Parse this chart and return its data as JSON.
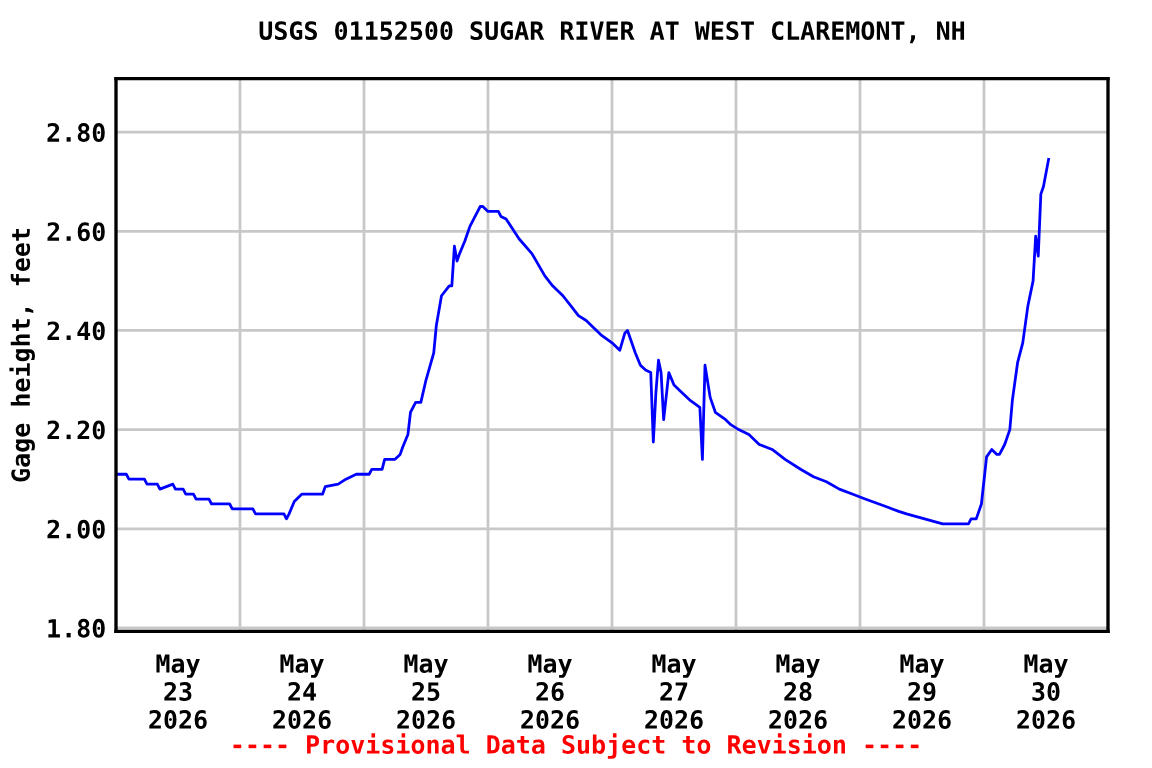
{
  "chart_data": {
    "type": "line",
    "title": "USGS 01152500 SUGAR RIVER AT WEST CLAREMONT, NH",
    "ylabel": "Gage height, feet",
    "annotations": [
      "---- Provisional Data Subject to Revision ----"
    ],
    "series": [
      {
        "color": "#0000ff",
        "x": [
          "2026-05-23T00:00",
          "2026-05-23T02:00",
          "2026-05-23T02:30",
          "2026-05-23T05:30",
          "2026-05-23T06:00",
          "2026-05-23T08:00",
          "2026-05-23T08:30",
          "2026-05-23T11:00",
          "2026-05-23T11:30",
          "2026-05-23T13:00",
          "2026-05-23T13:30",
          "2026-05-23T15:00",
          "2026-05-23T15:30",
          "2026-05-23T18:00",
          "2026-05-23T18:30",
          "2026-05-23T22:00",
          "2026-05-23T22:30",
          "2026-05-24T02:30",
          "2026-05-24T03:00",
          "2026-05-24T08:30",
          "2026-05-24T09:00",
          "2026-05-24T09:30",
          "2026-05-24T10:30",
          "2026-05-24T12:00",
          "2026-05-24T16:00",
          "2026-05-24T16:30",
          "2026-05-24T19:00",
          "2026-05-24T20:30",
          "2026-05-24T22:30",
          "2026-05-25T01:00",
          "2026-05-25T01:30",
          "2026-05-25T03:30",
          "2026-05-25T04:00",
          "2026-05-25T06:00",
          "2026-05-25T07:00",
          "2026-05-25T07:30",
          "2026-05-25T08:30",
          "2026-05-25T09:00",
          "2026-05-25T10:00",
          "2026-05-25T11:00",
          "2026-05-25T12:00",
          "2026-05-25T13:30",
          "2026-05-25T14:00",
          "2026-05-25T15:00",
          "2026-05-25T16:30",
          "2026-05-25T17:00",
          "2026-05-25T17:30",
          "2026-05-25T18:00",
          "2026-05-25T18:30",
          "2026-05-25T19:30",
          "2026-05-25T20:30",
          "2026-05-25T21:30",
          "2026-05-25T22:30",
          "2026-05-25T23:00",
          "2026-05-26T00:00",
          "2026-05-26T02:00",
          "2026-05-26T02:30",
          "2026-05-26T03:30",
          "2026-05-26T06:00",
          "2026-05-26T08:30",
          "2026-05-26T11:00",
          "2026-05-26T12:30",
          "2026-05-26T14:30",
          "2026-05-26T16:00",
          "2026-05-26T17:30",
          "2026-05-26T19:00",
          "2026-05-26T20:30",
          "2026-05-26T22:00",
          "2026-05-27T00:00",
          "2026-05-27T01:30",
          "2026-05-27T02:30",
          "2026-05-27T03:00",
          "2026-05-27T04:30",
          "2026-05-27T05:30",
          "2026-05-27T06:30",
          "2026-05-27T07:30",
          "2026-05-27T08:00",
          "2026-05-27T08:30",
          "2026-05-27T09:00",
          "2026-05-27T09:30",
          "2026-05-27T10:00",
          "2026-05-27T11:00",
          "2026-05-27T12:00",
          "2026-05-27T13:00",
          "2026-05-27T15:00",
          "2026-05-27T17:00",
          "2026-05-27T17:30",
          "2026-05-27T18:00",
          "2026-05-27T19:00",
          "2026-05-27T20:00",
          "2026-05-27T22:00",
          "2026-05-27T23:00",
          "2026-05-28T00:30",
          "2026-05-28T02:30",
          "2026-05-28T04:30",
          "2026-05-28T07:00",
          "2026-05-28T09:30",
          "2026-05-28T12:30",
          "2026-05-28T15:00",
          "2026-05-28T17:30",
          "2026-05-28T20:00",
          "2026-05-28T22:30",
          "2026-05-29T01:00",
          "2026-05-29T05:00",
          "2026-05-29T07:30",
          "2026-05-29T09:00",
          "2026-05-29T12:30",
          "2026-05-29T16:00",
          "2026-05-29T21:00",
          "2026-05-29T21:30",
          "2026-05-29T22:30",
          "2026-05-29T23:30",
          "2026-05-30T00:30",
          "2026-05-30T01:30",
          "2026-05-30T02:30",
          "2026-05-30T03:00",
          "2026-05-30T04:00",
          "2026-05-30T05:00",
          "2026-05-30T05:30",
          "2026-05-30T06:30",
          "2026-05-30T07:30",
          "2026-05-30T08:30",
          "2026-05-30T09:30",
          "2026-05-30T10:00",
          "2026-05-30T10:30",
          "2026-05-30T11:00",
          "2026-05-30T11:30",
          "2026-05-30T12:30"
        ],
        "values": [
          2.11,
          2.11,
          2.1,
          2.1,
          2.09,
          2.09,
          2.08,
          2.09,
          2.08,
          2.08,
          2.07,
          2.07,
          2.06,
          2.06,
          2.05,
          2.05,
          2.04,
          2.04,
          2.03,
          2.03,
          2.02,
          2.03,
          2.055,
          2.07,
          2.07,
          2.085,
          2.09,
          2.1,
          2.11,
          2.11,
          2.12,
          2.12,
          2.14,
          2.14,
          2.15,
          2.165,
          2.19,
          2.235,
          2.255,
          2.255,
          2.3,
          2.355,
          2.41,
          2.47,
          2.49,
          2.49,
          2.57,
          2.54,
          2.555,
          2.58,
          2.61,
          2.63,
          2.65,
          2.65,
          2.64,
          2.64,
          2.63,
          2.625,
          2.585,
          2.555,
          2.51,
          2.49,
          2.47,
          2.45,
          2.43,
          2.42,
          2.405,
          2.39,
          2.375,
          2.36,
          2.395,
          2.4,
          2.355,
          2.33,
          2.32,
          2.315,
          2.175,
          2.275,
          2.34,
          2.315,
          2.22,
          2.315,
          2.29,
          2.28,
          2.26,
          2.245,
          2.14,
          2.33,
          2.265,
          2.235,
          2.22,
          2.21,
          2.2,
          2.19,
          2.17,
          2.16,
          2.14,
          2.12,
          2.105,
          2.095,
          2.08,
          2.07,
          2.06,
          2.045,
          2.035,
          2.03,
          2.02,
          2.01,
          2.01,
          2.02,
          2.02,
          2.05,
          2.145,
          2.16,
          2.15,
          2.15,
          2.17,
          2.2,
          2.26,
          2.335,
          2.375,
          2.45,
          2.5,
          2.59,
          2.55,
          2.675,
          2.69,
          2.745
        ]
      }
    ],
    "xlim": [
      "2026-05-23T00:00",
      "2026-05-31T00:00"
    ],
    "xticks": [
      {
        "value": "2026-05-23T12:00",
        "label": "May\n23\n2026"
      },
      {
        "value": "2026-05-24T12:00",
        "label": "May\n24\n2026"
      },
      {
        "value": "2026-05-25T12:00",
        "label": "May\n25\n2026"
      },
      {
        "value": "2026-05-26T12:00",
        "label": "May\n26\n2026"
      },
      {
        "value": "2026-05-27T12:00",
        "label": "May\n27\n2026"
      },
      {
        "value": "2026-05-28T12:00",
        "label": "May\n28\n2026"
      },
      {
        "value": "2026-05-29T12:00",
        "label": "May\n29\n2026"
      },
      {
        "value": "2026-05-30T12:00",
        "label": "May\n30\n2026"
      },
      {
        "value": "2026-05-24T00:00",
        "label": null
      },
      {
        "value": "2026-05-25T00:00",
        "label": null
      },
      {
        "value": "2026-05-26T00:00",
        "label": null
      },
      {
        "value": "2026-05-27T00:00",
        "label": null
      },
      {
        "value": "2026-05-28T00:00",
        "label": null
      },
      {
        "value": "2026-05-29T00:00",
        "label": null
      },
      {
        "value": "2026-05-30T00:00",
        "label": null
      }
    ],
    "ylim": [
      1.793,
      2.908
    ],
    "yticks": [
      {
        "value": 1.8,
        "label": "1.80"
      },
      {
        "value": 2.0,
        "label": "2.00"
      },
      {
        "value": 2.2,
        "label": "2.20"
      },
      {
        "value": 2.4,
        "label": "2.40"
      },
      {
        "value": 2.6,
        "label": "2.60"
      },
      {
        "value": 2.8,
        "label": "2.80"
      }
    ],
    "grid": true,
    "legend": false,
    "marker": "none",
    "line_style": "solid"
  }
}
